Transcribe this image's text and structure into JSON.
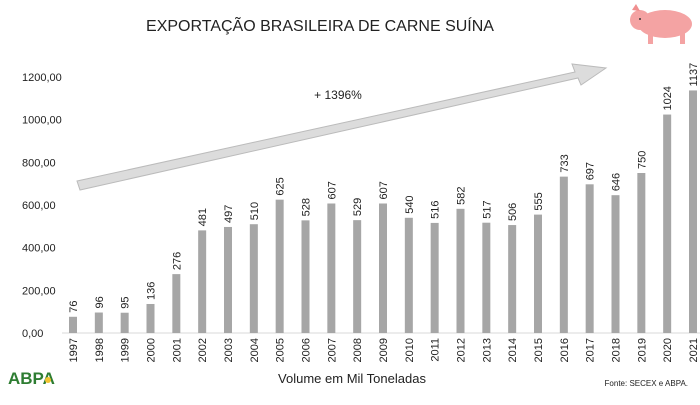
{
  "chart_data": {
    "type": "bar",
    "title": "EXPORTAÇÃO BRASILEIRA DE CARNE SUÍNA",
    "xlabel": "Volume em Mil Toneladas",
    "ylabel": "",
    "ylim": [
      0,
      1200
    ],
    "yticks": [
      "0,00",
      "200,00",
      "400,00",
      "600,00",
      "800,00",
      "1000,00",
      "1200,00"
    ],
    "grid": false,
    "categories": [
      "1997",
      "1998",
      "1999",
      "2000",
      "2001",
      "2002",
      "2003",
      "2004",
      "2005",
      "2006",
      "2007",
      "2008",
      "2009",
      "2010",
      "2011",
      "2012",
      "2013",
      "2014",
      "2015",
      "2016",
      "2017",
      "2018",
      "2019",
      "2020",
      "2021"
    ],
    "values": [
      76,
      96,
      95,
      136,
      276,
      481,
      497,
      510,
      625,
      528,
      607,
      529,
      607,
      540,
      516,
      582,
      517,
      506,
      555,
      733,
      697,
      646,
      750,
      1024,
      1137
    ],
    "bar_color": "#a6a6a6",
    "annotation": "+ 1396%",
    "source": "Fonte: SECEX e ABPA."
  },
  "logo": {
    "text": "ABPA",
    "color": "#2e7d32"
  },
  "icons": {
    "pig": "pig-icon"
  }
}
